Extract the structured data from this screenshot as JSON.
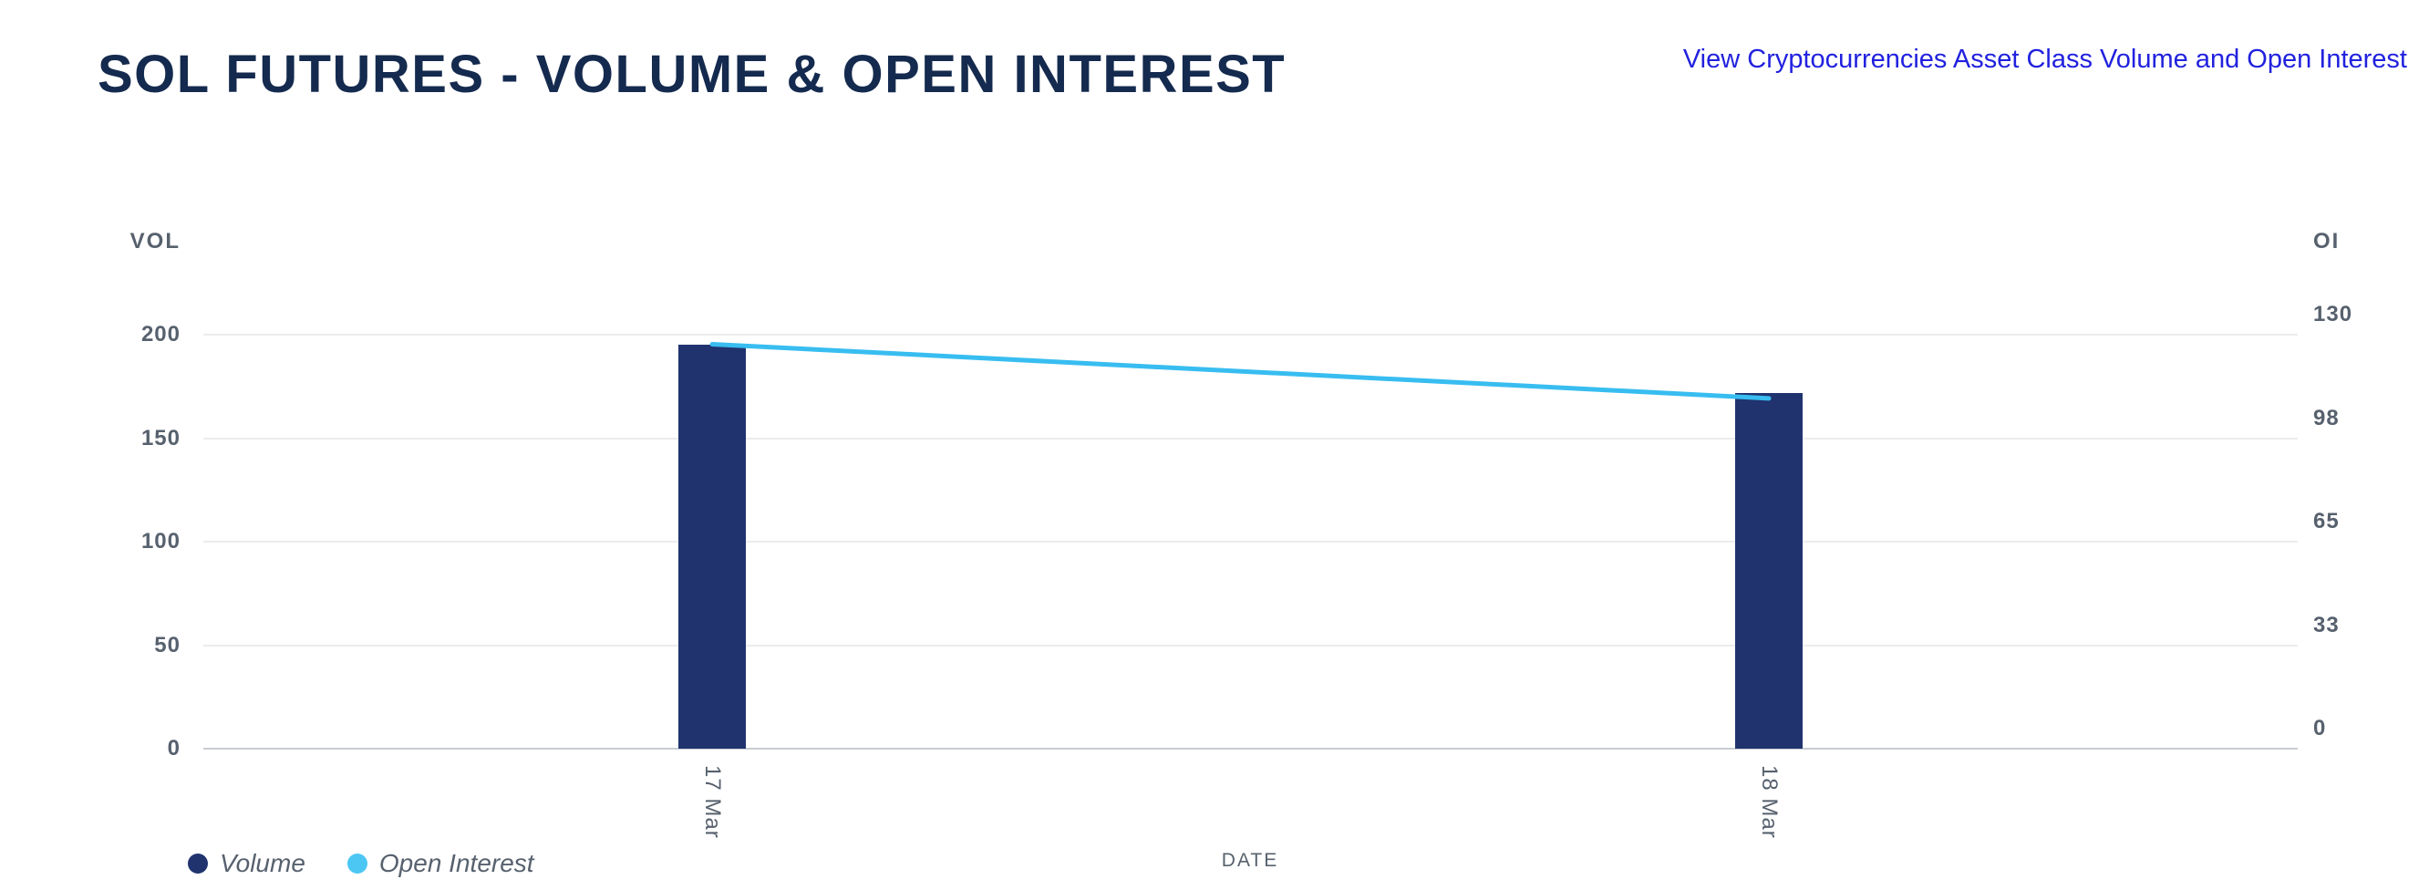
{
  "header": {
    "title": "SOL FUTURES - VOLUME & OPEN INTEREST",
    "link_label": "View Cryptocurrencies Asset Class Volume and Open Interest"
  },
  "chart_data": {
    "type": "bar",
    "title": "SOL FUTURES - VOLUME & OPEN INTEREST",
    "categories": [
      "17 Mar",
      "18 Mar"
    ],
    "series": [
      {
        "name": "Volume",
        "type": "bar",
        "yaxis": "left",
        "color": "#20336f",
        "values": [
          195,
          172
        ]
      },
      {
        "name": "Open Interest",
        "type": "line",
        "yaxis": "right",
        "color": "#38bdf0",
        "values": [
          127,
          110
        ]
      }
    ],
    "xlabel": "DATE",
    "left_axis": {
      "label": "VOL",
      "range": [
        0,
        200
      ],
      "ticks": [
        0,
        50,
        100,
        150,
        200
      ]
    },
    "right_axis": {
      "label": "OI",
      "range": [
        0,
        130
      ],
      "ticks": [
        0,
        33,
        65,
        98,
        130
      ]
    },
    "grid": true,
    "legend_position": "bottom-left",
    "legend": [
      {
        "label": "Volume",
        "color": "#20336f"
      },
      {
        "label": "Open Interest",
        "color": "#4cc7f4"
      }
    ]
  },
  "colors": {
    "title": "#142a4e",
    "link": "#2121df",
    "axis_text": "#57616e",
    "gridline": "#ececec",
    "zero_line": "#c9ccd2",
    "volume_bar": "#20336f",
    "oi_line": "#38bdf0",
    "oi_legend_dot": "#4cc7f4"
  }
}
